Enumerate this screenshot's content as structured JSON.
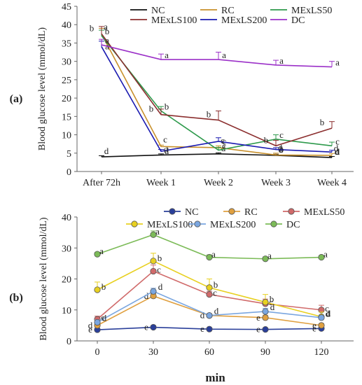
{
  "chart_data": [
    {
      "panel_label": "(a)",
      "type": "line",
      "title": "",
      "xlabel": "",
      "ylabel": "Blood glucose level (mmol/dL)",
      "ylim": [
        0,
        45
      ],
      "yticks": [
        0,
        5,
        10,
        15,
        20,
        25,
        30,
        35,
        40,
        45
      ],
      "categories": [
        "After 72h",
        "Week 1",
        "Week 2",
        "Week 3",
        "Week 4"
      ],
      "legend_position": "top",
      "grid": false,
      "series": [
        {
          "name": "NC",
          "color": "#111111",
          "marker": "none",
          "values": [
            4.0,
            4.5,
            4.8,
            4.4,
            3.8
          ],
          "errors": [
            0.3,
            0.3,
            0.3,
            0.3,
            0.3
          ],
          "letters": [
            "d",
            "d",
            "d",
            "d",
            "d"
          ]
        },
        {
          "name": "RC",
          "color": "#c8902c",
          "marker": "none",
          "values": [
            37.5,
            6.8,
            6.5,
            4.5,
            4.4
          ],
          "errors": [
            1.5,
            0.4,
            0.5,
            0.5,
            0.5
          ],
          "letters": [
            "a",
            "c",
            "c",
            "d",
            "d"
          ]
        },
        {
          "name": "MExLS50",
          "color": "#2e9a4c",
          "marker": "none",
          "values": [
            37.0,
            16.5,
            5.8,
            8.8,
            7.0
          ],
          "errors": [
            1.5,
            1.2,
            0.8,
            1.2,
            1.0
          ],
          "letters": [
            "b",
            "b",
            "c",
            "c",
            "c"
          ]
        },
        {
          "name": "MExLS100",
          "color": "#8b2e2e",
          "marker": "none",
          "values": [
            37.5,
            15.5,
            14.0,
            7.0,
            11.8
          ],
          "errors": [
            2.0,
            1.5,
            2.5,
            1.5,
            1.8
          ],
          "letters": [
            "b",
            "b",
            "b",
            "b",
            "b"
          ]
        },
        {
          "name": "MExLS200",
          "color": "#1a1ab0",
          "marker": "none",
          "values": [
            34.0,
            5.5,
            8.2,
            6.0,
            5.3
          ],
          "errors": [
            1.5,
            0.5,
            1.0,
            0.5,
            0.5
          ],
          "letters": [
            "a",
            "d",
            "c",
            "b",
            "d"
          ]
        },
        {
          "name": "DC",
          "color": "#9b30c8",
          "marker": "none",
          "values": [
            34.5,
            30.5,
            30.5,
            29.0,
            28.5
          ],
          "errors": [
            1.5,
            1.5,
            2.0,
            1.3,
            1.5
          ],
          "letters": [
            "a",
            "a",
            "a",
            "a",
            "a"
          ]
        }
      ]
    },
    {
      "panel_label": "(b)",
      "type": "line",
      "title": "",
      "xlabel": "min",
      "ylabel": "Blood glucose level (mmol/dL)",
      "ylim": [
        0,
        40
      ],
      "yticks": [
        0,
        10,
        20,
        30,
        40
      ],
      "categories": [
        "0",
        "30",
        "60",
        "90",
        "120"
      ],
      "legend_position": "top",
      "grid": false,
      "series": [
        {
          "name": "NC",
          "color": "#2a3f9a",
          "marker": "circle",
          "values": [
            3.6,
            4.4,
            3.8,
            3.7,
            4.0
          ],
          "errors": [
            0.3,
            0.5,
            0.3,
            0.3,
            0.3
          ],
          "letters": [
            "e",
            "e",
            "e",
            "e",
            "e"
          ]
        },
        {
          "name": "RC",
          "color": "#e0a040",
          "marker": "circle",
          "values": [
            5.0,
            14.5,
            8.2,
            7.5,
            5.0
          ],
          "errors": [
            0.8,
            0.8,
            0.6,
            0.8,
            0.6
          ],
          "letters": [
            "d",
            "d",
            "d",
            "e",
            "e"
          ]
        },
        {
          "name": "MExLS50",
          "color": "#d06a6a",
          "marker": "circle",
          "values": [
            7.0,
            22.5,
            15.0,
            12.0,
            10.0
          ],
          "errors": [
            1.0,
            2.0,
            1.0,
            1.5,
            1.5
          ],
          "letters": [
            "c",
            "c",
            "c",
            "c",
            "c"
          ]
        },
        {
          "name": "MExLS100",
          "color": "#e8d020",
          "marker": "circle",
          "values": [
            16.5,
            25.8,
            17.2,
            12.5,
            7.8
          ],
          "errors": [
            2.5,
            2.5,
            2.8,
            2.5,
            1.5
          ],
          "letters": [
            "b",
            "b",
            "b",
            "b",
            "d"
          ]
        },
        {
          "name": "MExLS200",
          "color": "#7aa6e0",
          "marker": "circle",
          "values": [
            6.0,
            16.0,
            8.2,
            9.5,
            7.5
          ],
          "errors": [
            0.8,
            1.0,
            0.5,
            1.0,
            0.8
          ],
          "letters": [
            "d",
            "d",
            "d",
            "d",
            "d"
          ]
        },
        {
          "name": "DC",
          "color": "#7cbb58",
          "marker": "circle",
          "values": [
            28.0,
            34.3,
            27.0,
            26.5,
            27.0
          ],
          "errors": [
            0.6,
            1.2,
            0.8,
            0.6,
            0.5
          ],
          "letters": [
            "a",
            "a",
            "a",
            "a",
            "a"
          ]
        }
      ]
    }
  ]
}
